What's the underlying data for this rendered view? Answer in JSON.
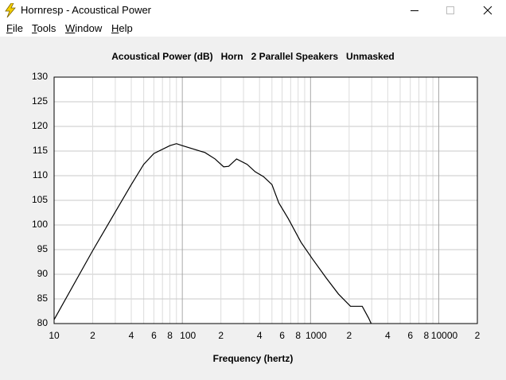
{
  "window": {
    "title": "Hornresp - Acoustical Power"
  },
  "menu": [
    "File",
    "Tools",
    "Window",
    "Help"
  ],
  "chart_data": {
    "type": "line",
    "title": "Acoustical Power (dB)   Horn   2 Parallel Speakers   Unmasked",
    "x_label": "Frequency (hertz)",
    "x": [
      10,
      20,
      40,
      50,
      60,
      80,
      90,
      100,
      150,
      180,
      210,
      230,
      265,
      320,
      370,
      430,
      500,
      565,
      670,
      842,
      1030,
      1330,
      1650,
      2050,
      2530,
      2840,
      2970
    ],
    "series": [
      {
        "color": "#000000",
        "values": [
          80.8,
          94.8,
          108.2,
          112.3,
          114.5,
          116.1,
          116.5,
          116.1,
          114.7,
          113.4,
          111.8,
          111.9,
          113.4,
          112.3,
          110.8,
          109.8,
          108.2,
          104.5,
          101.3,
          96.5,
          93.2,
          89.2,
          86.0,
          83.5,
          83.5,
          81.1,
          80
        ]
      }
    ],
    "xlog": true,
    "xlim": [
      10,
      20000
    ],
    "ylim": [
      80,
      130
    ],
    "xticks": [
      10,
      {
        "value": 20,
        "label": "2"
      },
      {
        "value": 40,
        "label": "4"
      },
      {
        "value": 60,
        "label": "6"
      },
      {
        "value": 80,
        "label": "8"
      },
      100,
      {
        "value": 200,
        "label": "2"
      },
      {
        "value": 400,
        "label": "4"
      },
      {
        "value": 600,
        "label": "6"
      },
      {
        "value": 800,
        "label": "8"
      },
      1000,
      {
        "value": 2000,
        "label": "2"
      },
      {
        "value": 4000,
        "label": "4"
      },
      {
        "value": 6000,
        "label": "6"
      },
      {
        "value": 8000,
        "label": "8"
      },
      10000,
      {
        "value": 20000,
        "label": "2"
      }
    ],
    "xminor": [
      30,
      50,
      70,
      90,
      300,
      500,
      700,
      900,
      3000,
      5000,
      7000,
      9000
    ],
    "yticks": [
      80,
      85,
      90,
      95,
      100,
      105,
      110,
      115,
      120,
      125,
      130
    ],
    "grid": true
  }
}
